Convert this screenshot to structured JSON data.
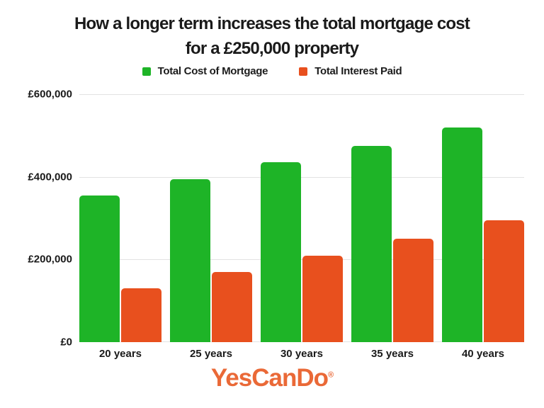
{
  "header": {
    "title_lines": [
      "How a longer term increases the total mortgage cost",
      "for a £250,000 property"
    ]
  },
  "chart_data": {
    "type": "bar",
    "title": "How a longer term increases the total mortgage cost for a £250,000 property",
    "categories": [
      "20 years",
      "25 years",
      "30 years",
      "35 years",
      "40 years"
    ],
    "series": [
      {
        "name": "Total Cost of Mortgage",
        "color": "#1EB427",
        "values": [
          355000,
          395000,
          435000,
          475000,
          520000
        ]
      },
      {
        "name": "Total Interest Paid",
        "color": "#E8501E",
        "values": [
          130000,
          170000,
          210000,
          250000,
          295000
        ]
      }
    ],
    "xlabel": "",
    "ylabel": "",
    "ylim": [
      0,
      600000
    ],
    "ytick_interval": 200000,
    "ytick_labels": [
      "£0",
      "£200,000",
      "£400,000",
      "£600,000"
    ],
    "grid": true,
    "legend_position": "top",
    "gridline_color": "#E2E2E2",
    "text_color": "#1A1A1A"
  },
  "footer": {
    "brand": "YesCanDo",
    "trademark": "®",
    "brand_color": "#EA6937"
  }
}
